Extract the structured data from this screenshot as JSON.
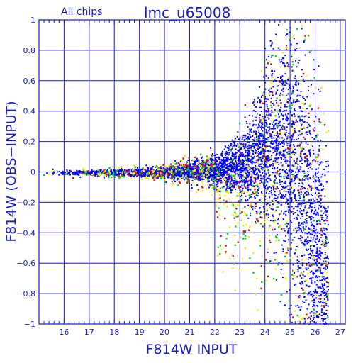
{
  "header": {
    "subset_label": "All chips",
    "dataset_name": "lmc_u65008"
  },
  "colors": {
    "axis": "#1a1acc",
    "grid": "#1a1acc",
    "text": "#1a1acc",
    "main_series": "#0000ff",
    "red_series": "#e01010",
    "green_series": "#10d010",
    "yellow_series": "#f0f000"
  },
  "chart_data": {
    "type": "scatter",
    "title": "lmc_u65008",
    "subtitle": "All chips",
    "xlabel": "F814W INPUT",
    "ylabel": "F814W (OBS−INPUT)",
    "xlim": [
      15,
      27.2
    ],
    "ylim": [
      -1,
      1
    ],
    "xticks": [
      16,
      17,
      18,
      19,
      20,
      21,
      22,
      23,
      24,
      25,
      26,
      27
    ],
    "yticks": [
      -1,
      -0.8,
      -0.6,
      -0.4,
      -0.2,
      0,
      0.2,
      0.4,
      0.6,
      0.8,
      1
    ],
    "ytick_labels": [
      "−1",
      "−0.8",
      "−0.6",
      "−0.4",
      "−0.2",
      "0",
      "0.2",
      "0.4",
      "0.6",
      "0.8",
      "1"
    ],
    "grid": true,
    "envelope": {
      "description": "residual spread vs input magnitude (sigma in mag)",
      "x": [
        15.1,
        16,
        17,
        18,
        19,
        20,
        21,
        22,
        22.5,
        23,
        23.5,
        24,
        24.5,
        25,
        25.5,
        26,
        26.5
      ],
      "sigma": [
        0.008,
        0.008,
        0.009,
        0.011,
        0.014,
        0.02,
        0.03,
        0.05,
        0.07,
        0.1,
        0.15,
        0.22,
        0.32,
        0.45,
        0.5,
        0.45,
        0.4
      ],
      "bias": [
        0,
        0,
        0,
        0,
        0,
        0,
        0.005,
        0.01,
        0.02,
        0.04,
        0.08,
        0.14,
        0.2,
        0.1,
        -0.2,
        -0.5,
        -0.8
      ]
    },
    "series": [
      {
        "color_key": "main_series",
        "fraction": 0.82
      },
      {
        "color_key": "yellow_series",
        "fraction": 0.09
      },
      {
        "color_key": "green_series",
        "fraction": 0.05
      },
      {
        "color_key": "red_series",
        "fraction": 0.04
      }
    ]
  }
}
